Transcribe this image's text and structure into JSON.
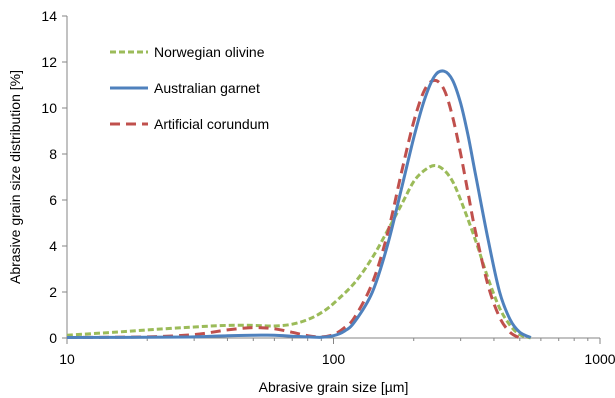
{
  "chart_data": {
    "type": "line",
    "xlabel": "Abrasive grain size [µm]",
    "ylabel": "Abrasive grain size distribution [%]",
    "xscale": "log",
    "xlim": [
      10,
      1000
    ],
    "ylim": [
      0,
      14
    ],
    "x_ticks": [
      10,
      100,
      1000
    ],
    "x_tick_labels": [
      "10",
      "100",
      "1000"
    ],
    "y_ticks": [
      0,
      2,
      4,
      6,
      8,
      10,
      12,
      14
    ],
    "y_tick_labels": [
      "0",
      "2",
      "4",
      "6",
      "8",
      "10",
      "12",
      "14"
    ],
    "grid": false,
    "legend_position": "top-left",
    "series": [
      {
        "name": "Norwegian olivine",
        "color": "#9BBB59",
        "dash": "dashed",
        "x": [
          10,
          15,
          20,
          30,
          40,
          50,
          60,
          70,
          80,
          90,
          100,
          120,
          140,
          160,
          180,
          200,
          220,
          240,
          260,
          280,
          300,
          340,
          380,
          420,
          460,
          500,
          550
        ],
        "y": [
          0.12,
          0.25,
          0.35,
          0.48,
          0.55,
          0.55,
          0.52,
          0.6,
          0.8,
          1.1,
          1.5,
          2.4,
          3.5,
          4.7,
          5.8,
          6.8,
          7.3,
          7.5,
          7.3,
          6.8,
          6.0,
          4.3,
          2.6,
          1.3,
          0.55,
          0.15,
          0.0
        ]
      },
      {
        "name": "Australian garnet",
        "color": "#4F81BD",
        "dash": "solid",
        "x": [
          10,
          20,
          30,
          40,
          50,
          60,
          70,
          80,
          90,
          100,
          110,
          120,
          140,
          160,
          180,
          200,
          220,
          240,
          260,
          280,
          300,
          320,
          340,
          380,
          420,
          460,
          500,
          550
        ],
        "y": [
          0.02,
          0.03,
          0.05,
          0.1,
          0.12,
          0.12,
          0.08,
          0.05,
          0.03,
          0.1,
          0.3,
          0.7,
          2.0,
          4.1,
          6.5,
          8.7,
          10.4,
          11.4,
          11.6,
          11.2,
          10.2,
          8.8,
          7.2,
          4.3,
          2.0,
          0.8,
          0.25,
          0.02
        ]
      },
      {
        "name": "Artificial corundum",
        "color": "#C0504D",
        "dash": "dashed",
        "x": [
          10,
          20,
          30,
          40,
          50,
          60,
          70,
          80,
          90,
          100,
          110,
          120,
          140,
          160,
          180,
          200,
          220,
          240,
          260,
          280,
          300,
          320,
          340,
          380,
          420,
          460,
          500
        ],
        "y": [
          0.02,
          0.05,
          0.15,
          0.35,
          0.45,
          0.4,
          0.25,
          0.1,
          0.05,
          0.15,
          0.45,
          0.9,
          2.4,
          4.6,
          7.2,
          9.4,
          10.8,
          11.2,
          10.8,
          9.6,
          8.0,
          6.3,
          4.7,
          2.3,
          0.9,
          0.25,
          0.0
        ]
      }
    ]
  }
}
